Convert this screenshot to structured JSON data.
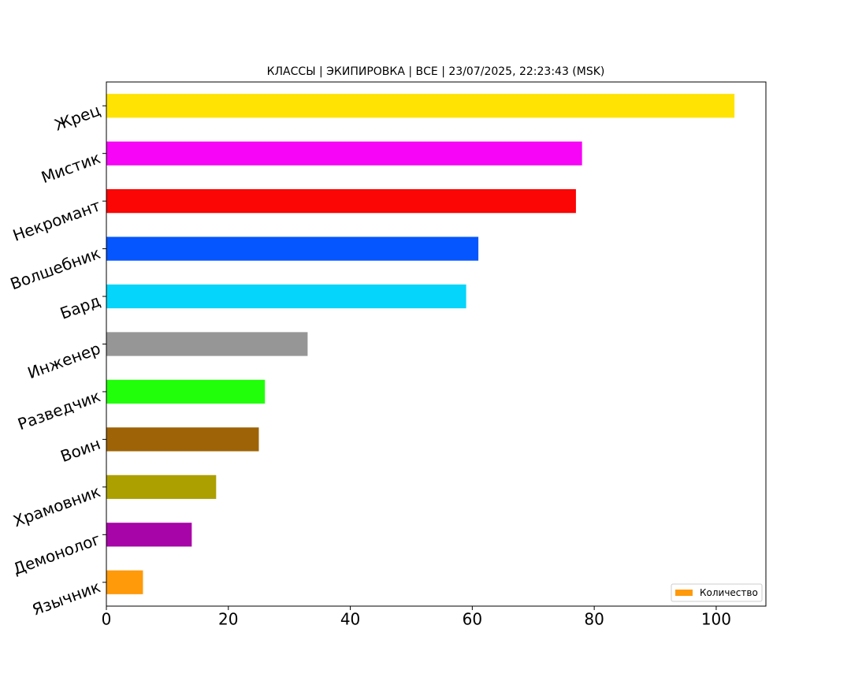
{
  "chart_data": {
    "type": "barh",
    "title": "КЛАССЫ | ЭКИПИРОВКА | ВСЕ | 23/07/2025, 22:23:43 (MSK)",
    "categories": [
      "Язычник",
      "Демонолог",
      "Храмовник",
      "Воин",
      "Разведчик",
      "Инженер",
      "Бард",
      "Волшебник",
      "Некромант",
      "Мистик",
      "Жрец"
    ],
    "series": [
      {
        "name": "Количество",
        "colors": [
          "#ff9a0a",
          "#a705a7",
          "#aca000",
          "#9e6306",
          "#21ff0b",
          "#969696",
          "#05d5fa",
          "#0556ff",
          "#fb0505",
          "#f705f7",
          "#ffe302"
        ],
        "values": [
          6,
          14,
          18,
          25,
          26,
          33,
          59,
          61,
          77,
          78,
          103
        ]
      }
    ],
    "xlim": [
      0,
      108.15
    ],
    "xticks": [
      0,
      20,
      40,
      60,
      80,
      100
    ],
    "legend": "lower right"
  }
}
